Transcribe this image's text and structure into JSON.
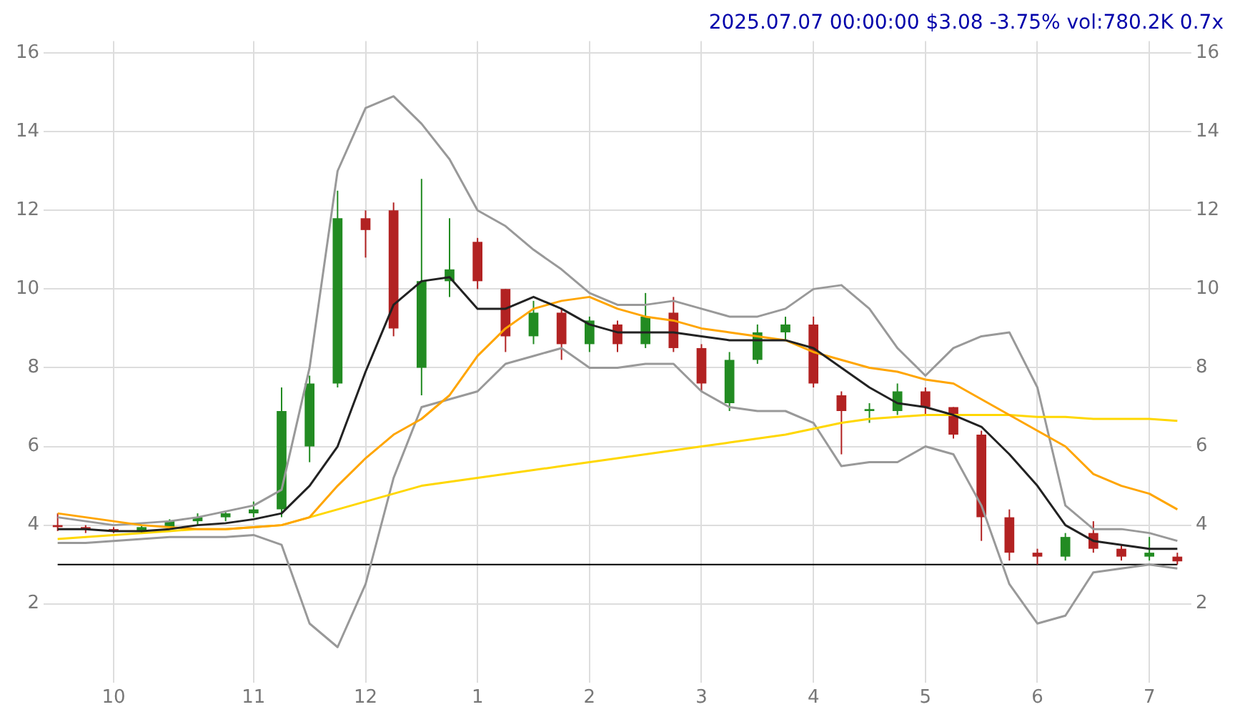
{
  "chart_data": {
    "type": "candlestick",
    "title": "2025.07.07 00:00:00 $3.08 -3.75% vol:780.2K 0.7x",
    "categories": [
      null,
      null,
      "10",
      null,
      null,
      null,
      null,
      "11",
      null,
      null,
      null,
      "12",
      null,
      null,
      null,
      "1",
      null,
      null,
      null,
      "2",
      null,
      null,
      null,
      "3",
      null,
      null,
      null,
      "4",
      null,
      null,
      null,
      "5",
      null,
      null,
      null,
      "6",
      null,
      null,
      null,
      "7",
      null
    ],
    "ohlc": [
      [
        4.0,
        4.3,
        3.85,
        3.95
      ],
      [
        3.95,
        4.0,
        3.8,
        3.9
      ],
      [
        3.9,
        3.95,
        3.8,
        3.85
      ],
      [
        3.85,
        4.0,
        3.8,
        3.95
      ],
      [
        3.95,
        4.15,
        3.9,
        4.1
      ],
      [
        4.1,
        4.3,
        4.0,
        4.2
      ],
      [
        4.2,
        4.35,
        4.1,
        4.3
      ],
      [
        4.3,
        4.6,
        4.2,
        4.4
      ],
      [
        4.4,
        7.5,
        4.2,
        6.9
      ],
      [
        6.0,
        7.8,
        5.6,
        7.6
      ],
      [
        7.6,
        12.5,
        7.5,
        11.8
      ],
      [
        11.8,
        12.0,
        10.8,
        11.5
      ],
      [
        12.0,
        12.2,
        8.8,
        9.0
      ],
      [
        8.0,
        12.8,
        7.3,
        10.2
      ],
      [
        10.2,
        11.8,
        9.8,
        10.5
      ],
      [
        11.2,
        11.3,
        10.0,
        10.2
      ],
      [
        10.0,
        10.0,
        8.4,
        8.8
      ],
      [
        8.8,
        9.7,
        8.6,
        9.4
      ],
      [
        9.4,
        9.5,
        8.2,
        8.6
      ],
      [
        8.6,
        9.3,
        8.4,
        9.2
      ],
      [
        9.1,
        9.2,
        8.4,
        8.6
      ],
      [
        8.6,
        9.9,
        8.5,
        9.3
      ],
      [
        9.4,
        9.8,
        8.4,
        8.5
      ],
      [
        8.5,
        8.6,
        7.4,
        7.6
      ],
      [
        7.1,
        8.4,
        6.9,
        8.2
      ],
      [
        8.2,
        9.1,
        8.1,
        8.9
      ],
      [
        8.9,
        9.3,
        8.7,
        9.1
      ],
      [
        9.1,
        9.3,
        7.5,
        7.6
      ],
      [
        7.3,
        7.4,
        5.8,
        6.9
      ],
      [
        6.9,
        7.1,
        6.6,
        6.95
      ],
      [
        6.9,
        7.6,
        6.8,
        7.4
      ],
      [
        7.4,
        7.5,
        6.8,
        7.0
      ],
      [
        7.0,
        7.0,
        6.2,
        6.3
      ],
      [
        6.3,
        6.4,
        3.6,
        4.2
      ],
      [
        4.2,
        4.4,
        3.1,
        3.3
      ],
      [
        3.3,
        3.4,
        3.0,
        3.2
      ],
      [
        3.2,
        3.8,
        3.1,
        3.7
      ],
      [
        3.8,
        4.1,
        3.3,
        3.4
      ],
      [
        3.4,
        3.5,
        3.1,
        3.2
      ],
      [
        3.2,
        3.7,
        3.1,
        3.3
      ],
      [
        3.2,
        3.3,
        3.0,
        3.08
      ]
    ],
    "colors": [
      "#b22222",
      "#b22222",
      "#b22222",
      "#228b22",
      "#228b22",
      "#228b22",
      "#228b22",
      "#228b22",
      "#228b22",
      "#228b22",
      "#228b22",
      "#b22222",
      "#b22222",
      "#228b22",
      "#228b22",
      "#b22222",
      "#b22222",
      "#228b22",
      "#b22222",
      "#228b22",
      "#b22222",
      "#228b22",
      "#b22222",
      "#b22222",
      "#228b22",
      "#228b22",
      "#228b22",
      "#b22222",
      "#b22222",
      "#228b22",
      "#228b22",
      "#b22222",
      "#b22222",
      "#b22222",
      "#b22222",
      "#b22222",
      "#228b22",
      "#b22222",
      "#b22222",
      "#228b22",
      "#b22222"
    ],
    "series": [
      {
        "type": "line",
        "color": "#222222",
        "values": [
          3.9,
          3.9,
          3.85,
          3.85,
          3.9,
          4.0,
          4.05,
          4.15,
          4.3,
          5.0,
          6.0,
          7.9,
          9.6,
          10.2,
          10.3,
          9.5,
          9.5,
          9.8,
          9.5,
          9.1,
          8.9,
          8.9,
          8.9,
          8.8,
          8.7,
          8.7,
          8.7,
          8.5,
          8.0,
          7.5,
          7.1,
          7.0,
          6.8,
          6.5,
          5.8,
          5.0,
          4.0,
          3.6,
          3.5,
          3.4,
          3.4
        ]
      },
      {
        "type": "line",
        "color": "#ffa500",
        "values": [
          4.3,
          4.2,
          4.1,
          4.0,
          3.95,
          3.9,
          3.9,
          3.95,
          4.0,
          4.2,
          5.0,
          5.7,
          6.3,
          6.7,
          7.3,
          8.3,
          9.0,
          9.5,
          9.7,
          9.8,
          9.5,
          9.3,
          9.2,
          9.0,
          8.9,
          8.8,
          8.7,
          8.4,
          8.2,
          8.0,
          7.9,
          7.7,
          7.6,
          7.2,
          6.8,
          6.4,
          6.0,
          5.3,
          5.0,
          4.8,
          4.4
        ]
      },
      {
        "type": "line",
        "color": "#ffd700",
        "values": [
          3.65,
          3.7,
          3.75,
          3.8,
          3.85,
          3.9,
          3.9,
          3.95,
          4.0,
          4.2,
          4.4,
          4.6,
          4.8,
          5.0,
          5.1,
          5.2,
          5.3,
          5.4,
          5.5,
          5.6,
          5.7,
          5.8,
          5.9,
          6.0,
          6.1,
          6.2,
          6.3,
          6.45,
          6.6,
          6.7,
          6.75,
          6.8,
          6.8,
          6.8,
          6.8,
          6.75,
          6.75,
          6.7,
          6.7,
          6.7,
          6.65
        ]
      },
      {
        "type": "line",
        "color": "#999999",
        "values": [
          4.2,
          4.1,
          4.0,
          4.05,
          4.1,
          4.2,
          4.35,
          4.5,
          4.9,
          8.0,
          13.0,
          14.6,
          14.9,
          14.2,
          13.3,
          12.0,
          11.6,
          11.0,
          10.5,
          9.9,
          9.6,
          9.6,
          9.7,
          9.5,
          9.3,
          9.3,
          9.5,
          10.0,
          10.1,
          9.5,
          8.5,
          7.8,
          8.5,
          8.8,
          8.9,
          7.5,
          4.5,
          3.9,
          3.9,
          3.8,
          3.6
        ]
      },
      {
        "type": "line",
        "color": "#999999",
        "values": [
          3.55,
          3.55,
          3.6,
          3.65,
          3.7,
          3.7,
          3.7,
          3.75,
          3.5,
          1.5,
          0.9,
          2.5,
          5.2,
          7.0,
          7.2,
          7.4,
          8.1,
          8.3,
          8.5,
          8.0,
          8.0,
          8.1,
          8.1,
          7.4,
          7.0,
          6.9,
          6.9,
          6.6,
          5.5,
          5.6,
          5.6,
          6.0,
          5.8,
          4.5,
          2.5,
          1.5,
          1.7,
          2.8,
          2.9,
          3.0,
          2.9
        ]
      }
    ],
    "ref_lines": [
      {
        "axis": "y",
        "value": 3,
        "color": "#000000"
      }
    ],
    "ylim": [
      0,
      16.3
    ],
    "yticks": [
      2,
      4,
      6,
      8,
      10,
      12,
      14,
      16
    ],
    "y2lim": [
      0,
      16.3
    ],
    "y2ticks": [
      2,
      4,
      6,
      8,
      10,
      12,
      14,
      16
    ],
    "grid": true,
    "legend": false,
    "marker": "none",
    "line_style": "solid"
  }
}
